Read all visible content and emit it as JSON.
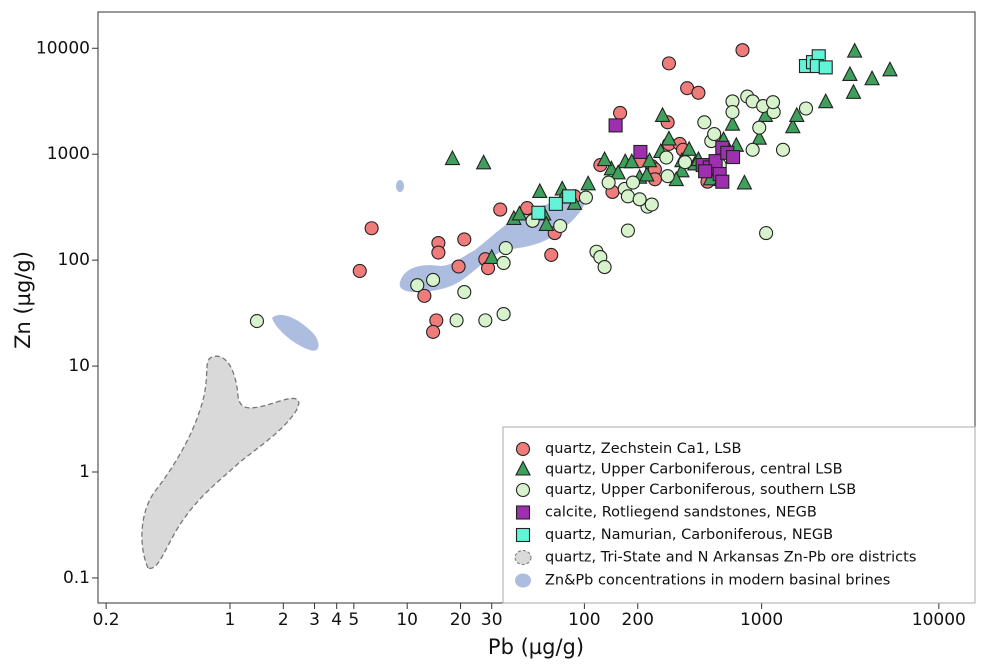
{
  "chart_data": {
    "type": "scatter",
    "x_label": "Pb (µg/g)",
    "y_label": "Zn (µg/g)",
    "xscale": "log",
    "yscale": "log",
    "xlim": [
      0.18,
      16000
    ],
    "ylim": [
      0.058,
      22000
    ],
    "xticks": [
      0.2,
      1,
      2,
      3,
      4,
      5,
      10,
      20,
      30,
      100,
      200,
      1000,
      10000
    ],
    "yticks": [
      0.1,
      1,
      10,
      100,
      1000,
      10000
    ],
    "legend": "lower right",
    "series": [
      {
        "name": "quartz, Zechstein Ca1, LSB",
        "color": "#f07b7b",
        "marker": "circle",
        "x": [
          6.3,
          5.4,
          14.6,
          14,
          12.5,
          15,
          15,
          21,
          19.5,
          27.6,
          28.6,
          33.5,
          47.5,
          65,
          68,
          88,
          123,
          144,
          159,
          205,
          240,
          250,
          300,
          295,
          300,
          345,
          380,
          440,
          495,
          780,
          250,
          360
        ],
        "values": [
          200,
          79,
          27,
          21,
          46,
          145,
          118,
          157,
          87,
          102,
          84,
          300,
          310,
          112,
          180,
          400,
          790,
          440,
          2450,
          860,
          770,
          720,
          7200,
          2000,
          1250,
          1250,
          4200,
          3800,
          550,
          9600,
          580,
          1100
        ]
      },
      {
        "name": "quartz, Upper Carboniferous, central LSB",
        "color": "#3fa05c",
        "marker": "triangle",
        "x": [
          18,
          27,
          30,
          40,
          43,
          56,
          59,
          61,
          75,
          76,
          88,
          105,
          142,
          170,
          185,
          233,
          270,
          276,
          300,
          355,
          390,
          420,
          440,
          515,
          530,
          590,
          610,
          685,
          720,
          800,
          970,
          1050,
          1500,
          1580,
          2300,
          3150,
          3350,
          3300,
          4200,
          5300,
          155,
          205,
          225,
          355,
          330,
          130
        ],
        "values": [
          900,
          820,
          105,
          245,
          270,
          440,
          270,
          215,
          465,
          390,
          340,
          520,
          720,
          840,
          840,
          860,
          1050,
          2300,
          1380,
          860,
          1100,
          800,
          880,
          580,
          760,
          570,
          1360,
          1900,
          1200,
          530,
          1400,
          2300,
          1800,
          2300,
          3100,
          5600,
          9300,
          3800,
          5100,
          6200,
          660,
          600,
          630,
          690,
          570,
          880
        ]
      },
      {
        "name": "quartz, Upper Carboniferous, southern LSB",
        "color": "#d6f3cc",
        "marker": "circle",
        "x": [
          1.42,
          11.4,
          14,
          19,
          21,
          27.6,
          35,
          35,
          36,
          51,
          73,
          102,
          117,
          123,
          130,
          137,
          169,
          176,
          176,
          188,
          227,
          240,
          205,
          290,
          295,
          370,
          475,
          520,
          540,
          580,
          685,
          685,
          830,
          890,
          970,
          1020,
          1060,
          1170,
          1780,
          1320,
          890,
          1160
        ],
        "values": [
          26.6,
          58,
          65,
          27,
          50,
          27,
          31,
          94,
          130,
          235,
          210,
          390,
          120,
          107,
          86,
          540,
          470,
          400,
          190,
          540,
          320,
          335,
          375,
          930,
          620,
          840,
          2000,
          1330,
          1550,
          790,
          3150,
          2500,
          3500,
          3150,
          1780,
          2850,
          180,
          2500,
          2700,
          1100,
          1100,
          3100
        ]
      },
      {
        "name": "calcite, Rotliegend sandstones, NEGB",
        "color": "#9e2fae",
        "marker": "square",
        "x": [
          150,
          207,
          465,
          510,
          550,
          580,
          600,
          640,
          690,
          600,
          480
        ],
        "values": [
          1870,
          1050,
          790,
          750,
          860,
          650,
          1150,
          1030,
          940,
          550,
          690
        ]
      },
      {
        "name": "quartz, Namurian, Carboniferous, NEGB",
        "color": "#63f3d6",
        "marker": "square",
        "x": [
          69,
          82,
          55,
          1780,
          1950,
          2100,
          2050,
          2300
        ],
        "values": [
          340,
          400,
          280,
          6800,
          7400,
          8400,
          6800,
          6600
        ]
      }
    ],
    "areas": [
      {
        "name": "quartz, Tri-State and N Arkansas Zn-Pb ore districts",
        "color": "#d9d9d9"
      },
      {
        "name": "Zn&Pb concentrations in modern basinal brines",
        "color": "#adbde0"
      }
    ]
  }
}
